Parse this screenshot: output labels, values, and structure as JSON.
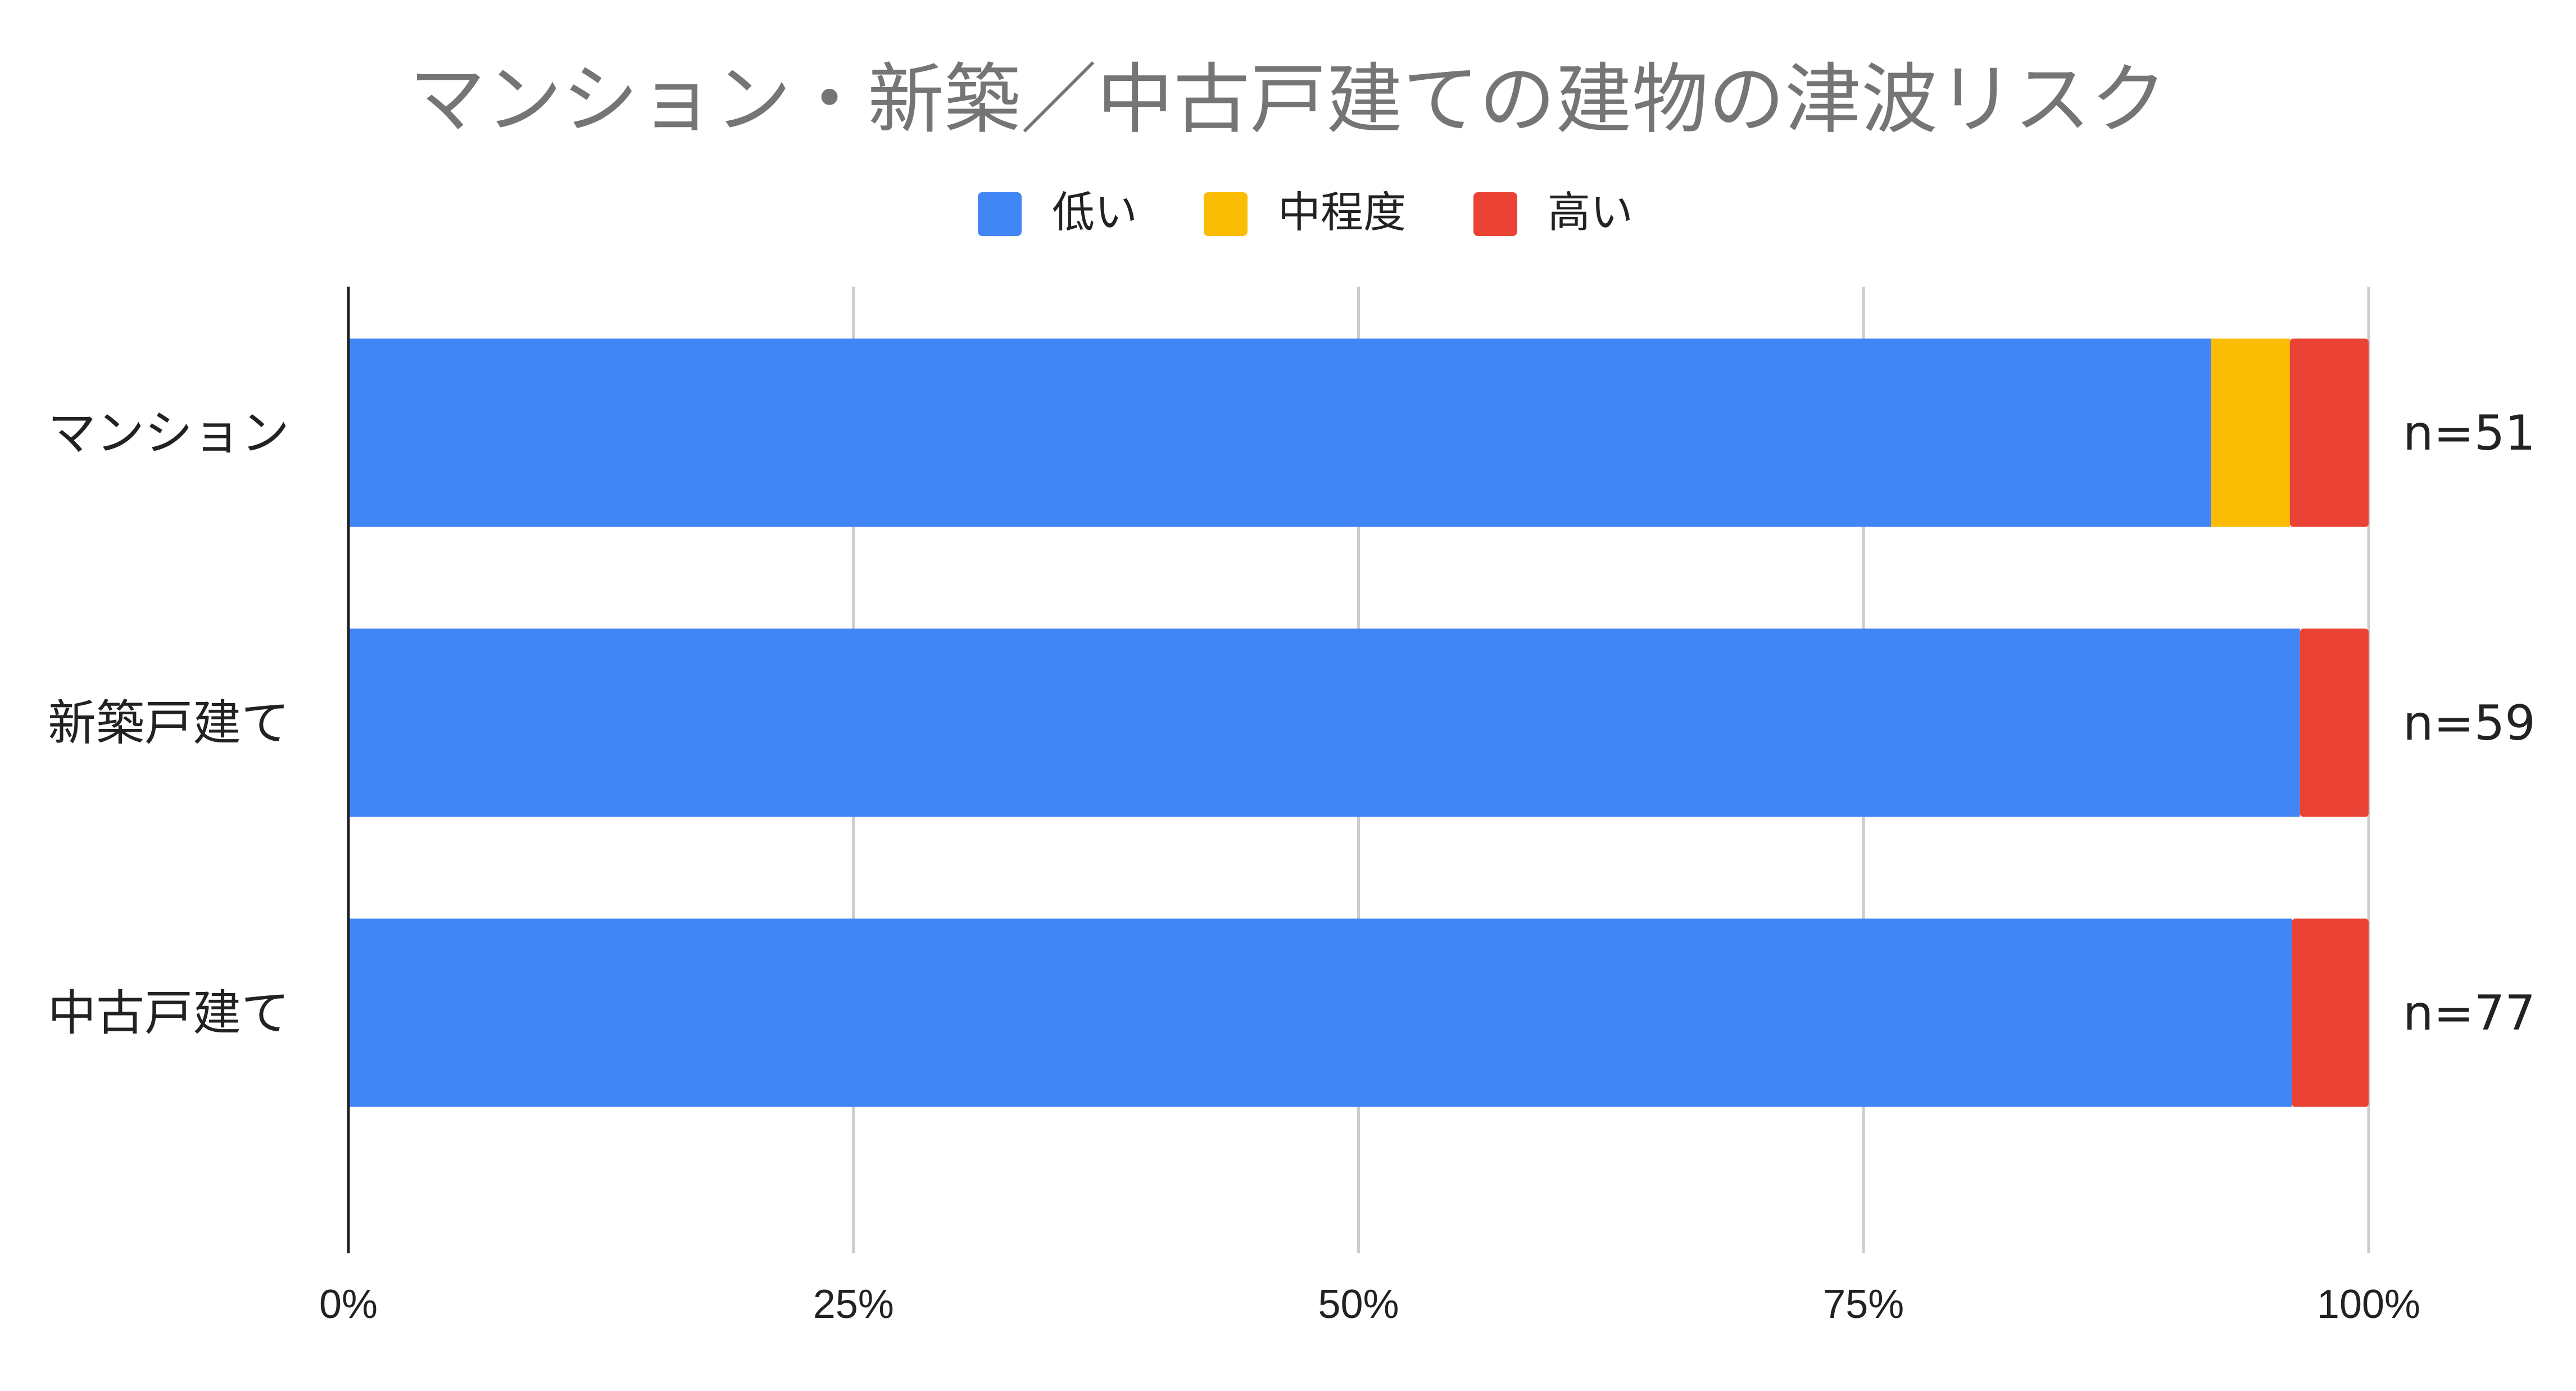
{
  "chart_data": {
    "type": "bar",
    "orientation": "horizontal",
    "stacked": true,
    "normalized": true,
    "title": "マンション・新築／中古戸建ての建物の津波リスク",
    "categories": [
      "マンション",
      "新築戸建て",
      "中古戸建て"
    ],
    "series": [
      {
        "name": "低い",
        "color": "#4285f4",
        "values": [
          92.2,
          96.6,
          96.2
        ]
      },
      {
        "name": "中程度",
        "color": "#fbbc04",
        "values": [
          3.9,
          0,
          0
        ]
      },
      {
        "name": "高い",
        "color": "#ea4335",
        "values": [
          3.9,
          3.4,
          3.8
        ]
      }
    ],
    "annotations": [
      "n=51",
      "n=59",
      "n=77"
    ],
    "xlim": [
      0,
      100
    ],
    "x_ticks": [
      "0%",
      "25%",
      "50%",
      "75%",
      "100%"
    ],
    "grid": true,
    "legend_position": "top"
  }
}
